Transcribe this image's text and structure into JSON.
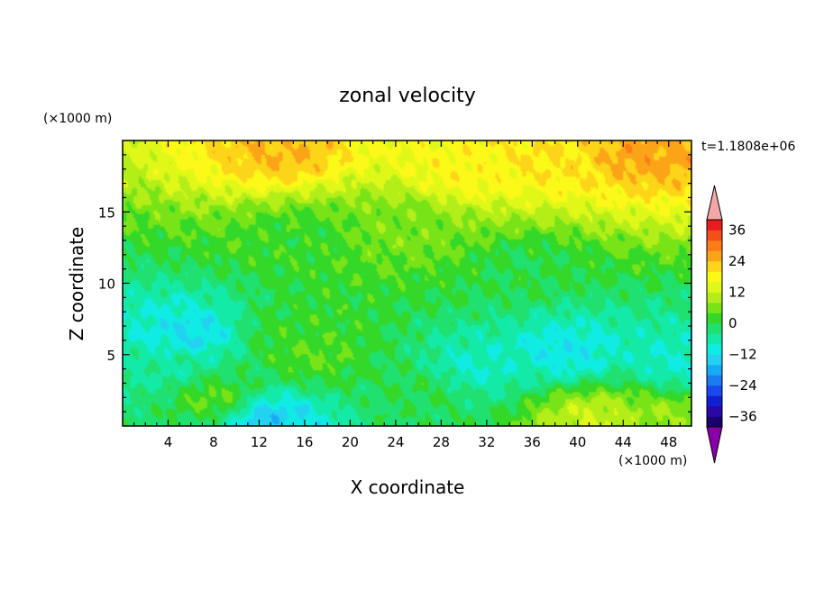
{
  "chart_data": {
    "type": "heatmap",
    "title": "zonal velocity",
    "xlabel": "X coordinate",
    "ylabel": "Z coordinate",
    "x_unit": "(×1000 m)",
    "y_unit": "(×1000 m)",
    "time_label": "t=1.1808e+06",
    "xlim": [
      0,
      50
    ],
    "ylim": [
      0,
      20
    ],
    "x_ticks": [
      4,
      8,
      12,
      16,
      20,
      24,
      28,
      32,
      36,
      40,
      44,
      48
    ],
    "y_ticks": [
      5,
      10,
      15
    ],
    "colorbar": {
      "min": -40,
      "max": 40,
      "step": 4,
      "tick_labels": [
        "36",
        "24",
        "12",
        "0",
        "−12",
        "−24",
        "−36"
      ],
      "tick_values": [
        36,
        24,
        12,
        0,
        -12,
        -24,
        -36
      ],
      "extend": "both",
      "over_color": "#f4a7a7",
      "under_color": "#8a00a8"
    },
    "field_features": [
      {
        "x": 14,
        "z": 19.2,
        "value": 24
      },
      {
        "x": 46,
        "z": 19.3,
        "value": 26
      },
      {
        "x": 37,
        "z": 19.0,
        "value": 20
      },
      {
        "x": 30,
        "z": 18.0,
        "value": 18
      },
      {
        "x": 25,
        "z": 14.0,
        "value": 6
      },
      {
        "x": 16,
        "z": 13.2,
        "value": 2
      },
      {
        "x": 35,
        "z": 11.0,
        "value": 0
      },
      {
        "x": 6,
        "z": 6.5,
        "value": -12
      },
      {
        "x": 13,
        "z": 0.5,
        "value": -14
      },
      {
        "x": 39,
        "z": 5.2,
        "value": -11
      },
      {
        "x": 31,
        "z": 4.2,
        "value": -8
      },
      {
        "x": 4,
        "z": 4.0,
        "value": -5
      },
      {
        "x": 17,
        "z": 5.0,
        "value": 4
      },
      {
        "x": 15,
        "z": 6.5,
        "value": 2
      },
      {
        "x": 8,
        "z": 2.0,
        "value": 4
      },
      {
        "x": 41,
        "z": 0.5,
        "value": 12
      },
      {
        "x": 47,
        "z": 0.3,
        "value": 8
      },
      {
        "x": 26,
        "z": 2.5,
        "value": 0
      },
      {
        "x": 49,
        "z": 4.5,
        "value": -8
      }
    ]
  }
}
